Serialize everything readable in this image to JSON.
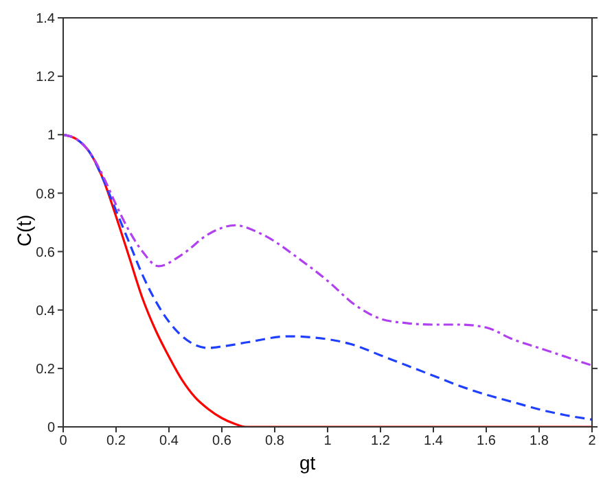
{
  "chart_data": {
    "type": "line",
    "xlabel": "gt",
    "ylabel": "C(t)",
    "xlim": [
      0,
      2
    ],
    "ylim": [
      0,
      1.4
    ],
    "xticks": [
      0,
      0.2,
      0.4,
      0.6,
      0.8,
      1,
      1.2,
      1.4,
      1.6,
      1.8,
      2
    ],
    "yticks": [
      0,
      0.2,
      0.4,
      0.6,
      0.8,
      1,
      1.2,
      1.4
    ],
    "grid": false,
    "marker": "none",
    "series": [
      {
        "color": "#ff0000",
        "line_style": "solid",
        "x": [
          0,
          0.05,
          0.1,
          0.15,
          0.2,
          0.25,
          0.3,
          0.35,
          0.4,
          0.45,
          0.5,
          0.55,
          0.6,
          0.65,
          0.69,
          0.8,
          1,
          1.2,
          1.4,
          1.6,
          1.8,
          2
        ],
        "values": [
          1,
          0.985,
          0.94,
          0.85,
          0.72,
          0.58,
          0.44,
          0.33,
          0.24,
          0.16,
          0.1,
          0.06,
          0.03,
          0.01,
          0,
          0,
          0,
          0,
          0,
          0,
          0,
          0
        ]
      },
      {
        "color": "#2040ff",
        "line_style": "dashed",
        "x": [
          0,
          0.05,
          0.1,
          0.15,
          0.2,
          0.25,
          0.3,
          0.35,
          0.4,
          0.45,
          0.5,
          0.55,
          0.6,
          0.7,
          0.85,
          1,
          1.1,
          1.2,
          1.3,
          1.4,
          1.5,
          1.6,
          1.7,
          1.8,
          1.9,
          2
        ],
        "values": [
          1,
          0.985,
          0.94,
          0.85,
          0.74,
          0.63,
          0.52,
          0.43,
          0.36,
          0.31,
          0.28,
          0.27,
          0.275,
          0.29,
          0.31,
          0.3,
          0.28,
          0.245,
          0.21,
          0.175,
          0.14,
          0.11,
          0.085,
          0.06,
          0.04,
          0.025
        ]
      },
      {
        "color": "#b040f0",
        "line_style": "dashdot",
        "x": [
          0,
          0.05,
          0.1,
          0.15,
          0.2,
          0.25,
          0.3,
          0.36,
          0.45,
          0.55,
          0.65,
          0.75,
          0.9,
          1,
          1.1,
          1.2,
          1.3,
          1.4,
          1.5,
          1.6,
          1.7,
          1.8,
          1.9,
          2
        ],
        "values": [
          1,
          0.985,
          0.94,
          0.86,
          0.76,
          0.67,
          0.6,
          0.55,
          0.59,
          0.66,
          0.69,
          0.66,
          0.57,
          0.5,
          0.42,
          0.37,
          0.355,
          0.35,
          0.35,
          0.34,
          0.3,
          0.27,
          0.24,
          0.21
        ]
      }
    ]
  }
}
